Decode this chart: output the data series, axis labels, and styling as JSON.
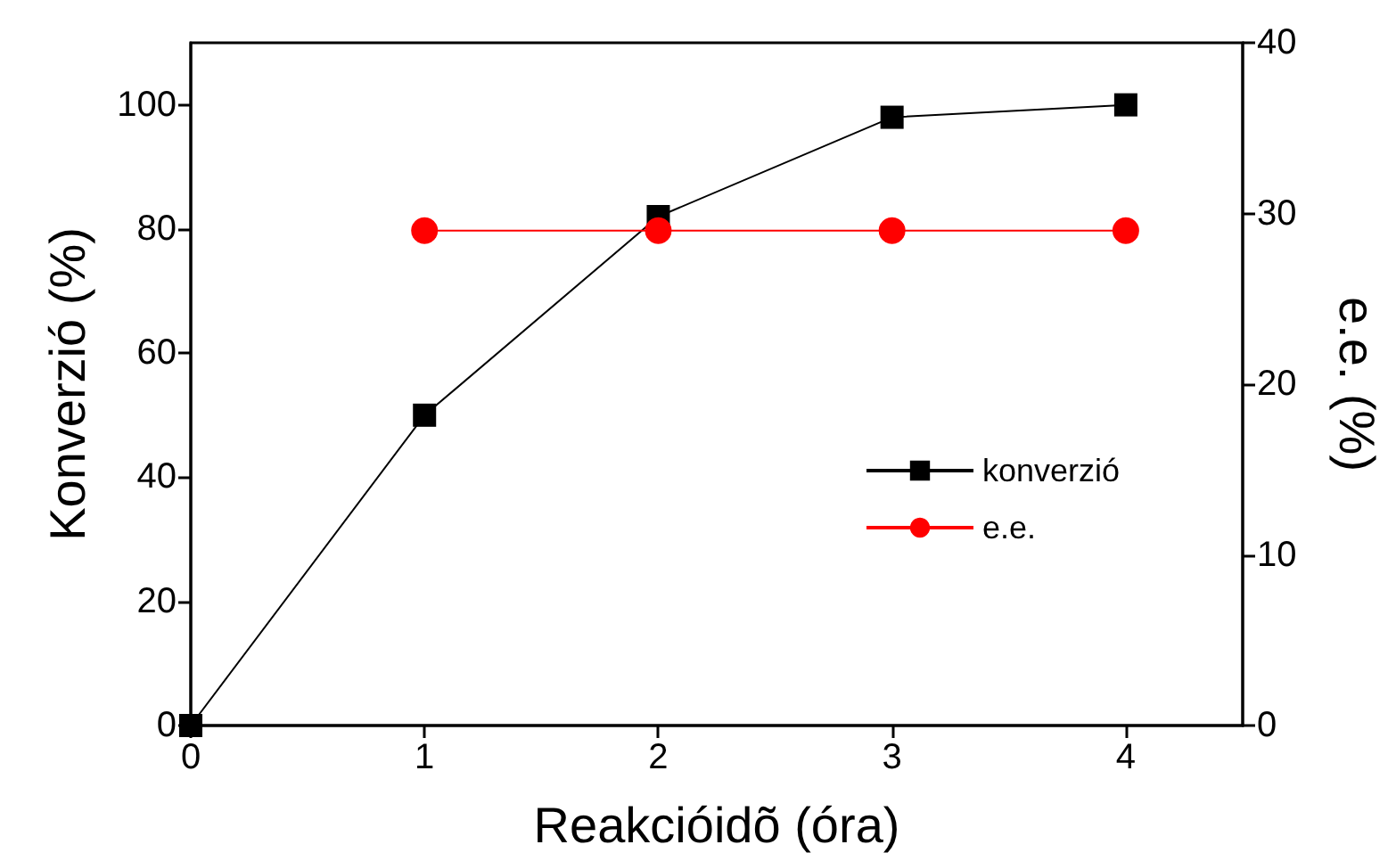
{
  "chart_data": {
    "type": "line",
    "xlabel": "Reakcióidõ (óra)",
    "ylabel": "Konverzió (%)",
    "y2label": "e.e. (%)",
    "x": [
      0,
      1,
      2,
      3,
      4
    ],
    "xlim": [
      0,
      4.5
    ],
    "xticks": [
      0,
      1,
      2,
      3,
      4
    ],
    "ylim": [
      0,
      110
    ],
    "yticks": [
      0,
      20,
      40,
      60,
      80,
      100
    ],
    "y2lim": [
      0,
      40
    ],
    "y2ticks": [
      0,
      10,
      20,
      30,
      40
    ],
    "series": [
      {
        "name": "konverzió",
        "color": "#000000",
        "marker": "square",
        "values": [
          0,
          50,
          82,
          98,
          100
        ]
      },
      {
        "name": "e.e.",
        "color": "#ff0000",
        "marker": "circle",
        "axis": "y2",
        "x": [
          1,
          2,
          3,
          4
        ],
        "values": [
          29,
          29,
          29,
          29
        ]
      }
    ],
    "legend": "right",
    "grid": false,
    "line_style": "solid"
  }
}
